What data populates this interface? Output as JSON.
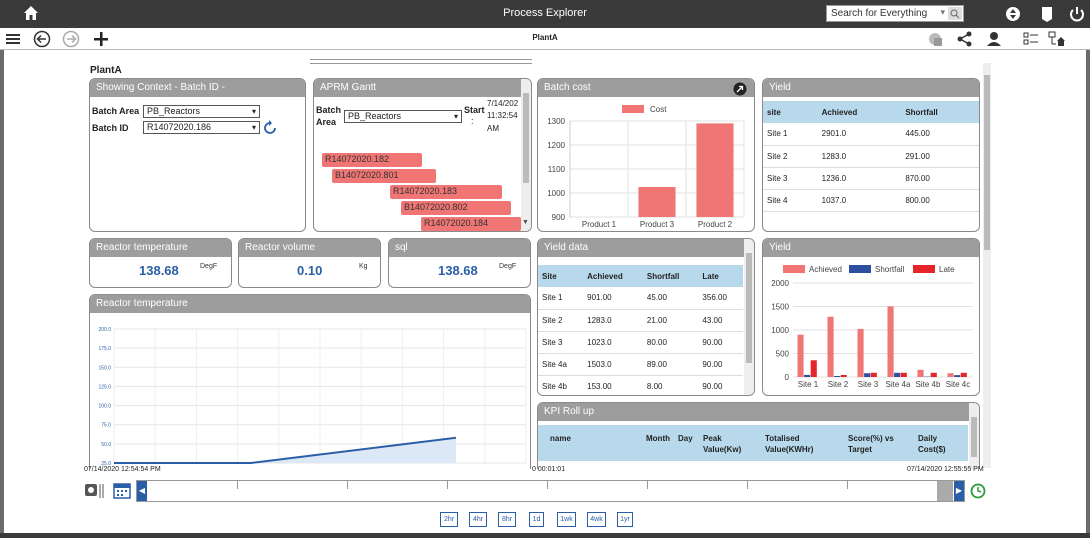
{
  "app": {
    "title": "Process Explorer",
    "search_placeholder": "Search for Everything",
    "subtitle": "PlantA"
  },
  "page": {
    "plant_title": "PlantA"
  },
  "context_panel": {
    "title": "Showing Context - Batch ID -",
    "batch_area_label": "Batch Area",
    "batch_area_value": "PB_Reactors",
    "batch_id_label": "Batch ID",
    "batch_id_value": "R14072020.186"
  },
  "gantt_panel": {
    "title": "APRM Gantt",
    "batch_label_1": "Batch",
    "batch_label_2": "Area",
    "batch_area_value": "PB_Reactors",
    "start_label": "Start",
    "start_colon": ":",
    "start_date": "7/14/202",
    "start_time": "11:32:54",
    "start_ampm": "AM",
    "bars": [
      "R14072020.182",
      "B14072020.801",
      "R14072020.183",
      "B14072020.802",
      "R14072020.184"
    ]
  },
  "batch_cost": {
    "title": "Batch cost"
  },
  "yield_panel": {
    "title": "Yield",
    "columns": [
      "site",
      "Achieved",
      "Shortfall"
    ],
    "rows": [
      [
        "Site 1",
        "2901.0",
        "445.00"
      ],
      [
        "Site 2",
        "1283.0",
        "291.00"
      ],
      [
        "Site 3",
        "1236.0",
        "870.00"
      ],
      [
        "Site 4",
        "1037.0",
        "800.00"
      ]
    ]
  },
  "tiles": [
    {
      "title": "Reactor temperature",
      "value": "138.68",
      "unit": "DegF"
    },
    {
      "title": "Reactor volume",
      "value": "0.10",
      "unit": "Kg"
    },
    {
      "title": "sql",
      "value": "138.68",
      "unit": "DegF"
    }
  ],
  "yield_data": {
    "title": "Yield data",
    "columns": [
      "Site",
      "Achieved",
      "Shortfall",
      "Late"
    ],
    "rows": [
      [
        "Site 1",
        "901.00",
        "45.00",
        "356.00"
      ],
      [
        "Site 2",
        "1283.0",
        "21.00",
        "43.00"
      ],
      [
        "Site 3",
        "1023.0",
        "80.00",
        "90.00"
      ],
      [
        "Site 4a",
        "1503.0",
        "89.00",
        "90.00"
      ],
      [
        "Site 4b",
        "153.00",
        "8.00",
        "90.00"
      ]
    ]
  },
  "yield_chart": {
    "title": "Yield"
  },
  "reactor_chart": {
    "title": "Reactor temperature"
  },
  "kpi": {
    "title": "KPI Roll up",
    "col_name": "name",
    "col_month": "Month",
    "col_day": "Day",
    "col_peak_1": "Peak",
    "col_peak_2": "Value(Kw)",
    "col_total_1": "Totalised",
    "col_total_2": "Value(KWHr)",
    "col_score_1": "Score(%) vs",
    "col_score_2": "Target",
    "col_daily_1": "Daily",
    "col_daily_2": "Cost($)"
  },
  "timeline": {
    "start": "07/14/2020 12:54:54 PM",
    "duration": "0 00:01:01",
    "end": "07/14/2020 12:55:55 PM",
    "ranges": [
      "2hr",
      "4hr",
      "8hr",
      "1d",
      "1wk",
      "4wk",
      "1yr"
    ]
  },
  "colors": {
    "accent": "#2a5fa8",
    "header_gray": "#9d9d9d",
    "table_header": "#b8d9ec",
    "red": "#f07575",
    "navy": "#2e4fa0",
    "bright_red": "#e5252a"
  },
  "chart_data": [
    {
      "type": "bar",
      "title": "",
      "categories": [
        "Product 1",
        "Product 3",
        "Product 2"
      ],
      "series": [
        {
          "name": "Cost",
          "values": [
            900,
            1025,
            1290
          ]
        }
      ],
      "ylim": [
        900,
        1300
      ],
      "yticks": [
        900,
        1000,
        1100,
        1200,
        1300
      ],
      "legend": "top-center",
      "grid": true
    },
    {
      "type": "bar",
      "title": "",
      "categories": [
        "Site 1",
        "Site 2",
        "Site 3",
        "Site 4a",
        "Site 4b",
        "Site 4c"
      ],
      "series": [
        {
          "name": "Achieved",
          "values": [
            901,
            1283,
            1023,
            1503,
            153,
            80
          ]
        },
        {
          "name": "Shortfall",
          "values": [
            45,
            21,
            80,
            89,
            8,
            40
          ]
        },
        {
          "name": "Late",
          "values": [
            356,
            43,
            90,
            90,
            90,
            90
          ]
        }
      ],
      "ylim": [
        0,
        2000
      ],
      "yticks": [
        0,
        500,
        1000,
        1500,
        2000
      ],
      "legend": "top",
      "grid": true
    },
    {
      "type": "area",
      "title": "",
      "x": [
        0,
        0.4,
        1.0
      ],
      "values": [
        25,
        25,
        58
      ],
      "ylim": [
        25,
        200
      ],
      "yticks": [
        25.0,
        50.0,
        75.0,
        100.0,
        125.0,
        150.0,
        175.0,
        200.0
      ],
      "ytick_labels": [
        "25.0",
        "50.0",
        "75.0",
        "100.0",
        "125.0",
        "150.0",
        "175.0",
        "200.0"
      ],
      "grid": true
    }
  ]
}
